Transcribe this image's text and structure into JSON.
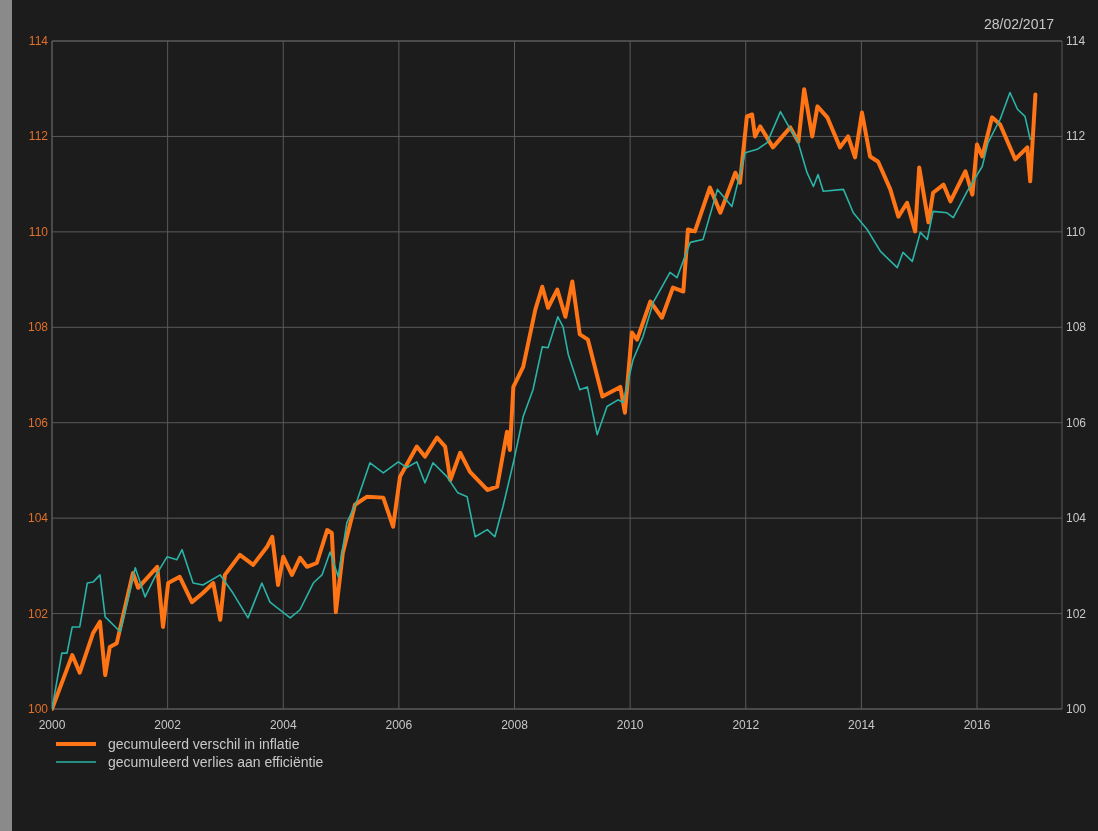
{
  "chart_data": {
    "type": "line",
    "annotations": [
      "28/02/2017"
    ],
    "xlim": [
      2000,
      2017.47
    ],
    "xticks": [
      2000,
      2002,
      2004,
      2006,
      2008,
      2010,
      2012,
      2014,
      2016
    ],
    "ylim": [
      100,
      114
    ],
    "yticks": [
      100,
      102,
      104,
      106,
      108,
      110,
      112,
      114
    ],
    "y2lim": [
      100,
      114
    ],
    "y2ticks": [
      100,
      102,
      104,
      106,
      108,
      110,
      112,
      114
    ],
    "grid": true,
    "legend": "bottom left",
    "marker": "none",
    "line_style": "solid",
    "series": [
      {
        "name": "gecumuleerd verschil in inflatie",
        "color": "#ff7415",
        "x": [
          2000,
          2000.35,
          2000.48,
          2000.71,
          2000.83,
          2000.92,
          2001.0,
          2001.12,
          2001.4,
          2001.49,
          2001.82,
          2001.92,
          2002.01,
          2002.21,
          2002.42,
          2002.61,
          2002.79,
          2002.91,
          2002.99,
          2003.25,
          2003.48,
          2003.72,
          2003.81,
          2003.91,
          2004.0,
          2004.15,
          2004.29,
          2004.41,
          2004.58,
          2004.76,
          2004.84,
          2004.91,
          2005.03,
          2005.24,
          2005.45,
          2005.73,
          2005.9,
          2006.02,
          2006.31,
          2006.45,
          2006.66,
          2006.8,
          2006.89,
          2007.06,
          2007.23,
          2007.53,
          2007.7,
          2007.87,
          2007.92,
          2007.98,
          2008.15,
          2008.36,
          2008.48,
          2008.58,
          2008.74,
          2008.88,
          2009.0,
          2009.13,
          2009.27,
          2009.52,
          2009.83,
          2009.91,
          2010.03,
          2010.12,
          2010.35,
          2010.55,
          2010.74,
          2010.92,
          2011.0,
          2011.12,
          2011.38,
          2011.56,
          2011.82,
          2011.9,
          2012.02,
          2012.11,
          2012.16,
          2012.25,
          2012.47,
          2012.77,
          2012.91,
          2013.01,
          2013.15,
          2013.24,
          2013.41,
          2013.63,
          2013.77,
          2013.89,
          2014.01,
          2014.15,
          2014.29,
          2014.5,
          2014.64,
          2014.79,
          2014.93,
          2015.0,
          2015.16,
          2015.24,
          2015.42,
          2015.54,
          2015.8,
          2015.92,
          2016.0,
          2016.09,
          2016.26,
          2016.4,
          2016.66,
          2016.87,
          2016.92,
          2017.01
        ],
        "values": [
          100,
          101.13,
          100.76,
          101.59,
          101.83,
          100.71,
          101.3,
          101.38,
          102.85,
          102.54,
          102.98,
          101.72,
          102.64,
          102.77,
          102.24,
          102.43,
          102.64,
          101.87,
          102.81,
          103.23,
          103.02,
          103.4,
          103.61,
          102.6,
          103.19,
          102.81,
          103.17,
          102.98,
          103.06,
          103.75,
          103.69,
          102.03,
          103.27,
          104.28,
          104.45,
          104.43,
          103.82,
          104.87,
          105.5,
          105.29,
          105.69,
          105.5,
          104.8,
          105.37,
          104.97,
          104.59,
          104.66,
          105.81,
          105.43,
          106.75,
          107.17,
          108.37,
          108.85,
          108.41,
          108.79,
          108.22,
          108.96,
          107.85,
          107.74,
          106.55,
          106.75,
          106.21,
          107.89,
          107.74,
          108.54,
          108.2,
          108.83,
          108.75,
          110.05,
          110.01,
          110.93,
          110.4,
          111.24,
          111.03,
          112.42,
          112.46,
          112,
          112.21,
          111.77,
          112.19,
          111.89,
          112.99,
          112,
          112.63,
          112.4,
          111.77,
          112,
          111.56,
          112.5,
          111.58,
          111.47,
          110.89,
          110.32,
          110.61,
          110.01,
          111.35,
          110.2,
          110.82,
          110.99,
          110.64,
          111.27,
          110.78,
          111.83,
          111.58,
          112.4,
          112.25,
          111.52,
          111.77,
          111.06,
          112.88
        ]
      },
      {
        "name": "gecumuleerd verlies aan efficiëntie",
        "color": "#2ab3a6",
        "x": [
          2000,
          2000.17,
          2000.26,
          2000.35,
          2000.48,
          2000.61,
          2000.71,
          2000.83,
          2000.92,
          2001.18,
          2001.44,
          2001.61,
          2001.78,
          2001.99,
          2002.16,
          2002.25,
          2002.44,
          2002.61,
          2002.91,
          2003.13,
          2003.39,
          2003.63,
          2003.77,
          2004.12,
          2004.29,
          2004.52,
          2004.67,
          2004.81,
          2004.95,
          2005.1,
          2005.28,
          2005.5,
          2005.73,
          2005.99,
          2006.14,
          2006.31,
          2006.45,
          2006.59,
          2006.83,
          2007.02,
          2007.18,
          2007.32,
          2007.53,
          2007.66,
          2007.8,
          2007.98,
          2008.15,
          2008.32,
          2008.48,
          2008.58,
          2008.75,
          2008.84,
          2008.93,
          2009.13,
          2009.26,
          2009.43,
          2009.6,
          2009.79,
          2009.88,
          2010.05,
          2010.22,
          2010.4,
          2010.69,
          2010.81,
          2011.04,
          2011.26,
          2011.51,
          2011.76,
          2011.99,
          2012.2,
          2012.37,
          2012.6,
          2012.77,
          2012.89,
          2013.06,
          2013.17,
          2013.25,
          2013.34,
          2013.69,
          2013.86,
          2014.1,
          2014.33,
          2014.62,
          2014.72,
          2014.88,
          2015.02,
          2015.14,
          2015.24,
          2015.48,
          2015.59,
          2015.83,
          2016.09,
          2016.19,
          2016.4,
          2016.57,
          2016.7,
          2016.83,
          2016.92
        ],
        "values": [
          100,
          101.17,
          101.17,
          101.72,
          101.72,
          102.64,
          102.66,
          102.81,
          101.93,
          101.62,
          102.96,
          102.35,
          102.77,
          103.19,
          103.13,
          103.34,
          102.64,
          102.6,
          102.81,
          102.43,
          101.91,
          102.64,
          102.24,
          101.91,
          102.08,
          102.64,
          102.81,
          103.29,
          102.77,
          103.9,
          104.38,
          105.16,
          104.95,
          105.18,
          105.06,
          105.18,
          104.74,
          105.16,
          104.87,
          104.53,
          104.45,
          103.61,
          103.76,
          103.61,
          104.24,
          105.16,
          106.13,
          106.69,
          107.59,
          107.57,
          108.22,
          108.01,
          107.43,
          106.69,
          106.75,
          105.75,
          106.34,
          106.48,
          106.42,
          107.32,
          107.8,
          108.52,
          109.15,
          109.04,
          109.78,
          109.84,
          110.89,
          110.53,
          111.66,
          111.73,
          111.87,
          112.52,
          112.15,
          111.94,
          111.24,
          110.95,
          111.2,
          110.85,
          110.89,
          110.4,
          110.05,
          109.59,
          109.25,
          109.57,
          109.38,
          109.99,
          109.84,
          110.43,
          110.4,
          110.3,
          110.85,
          111.37,
          111.87,
          112.36,
          112.92,
          112.57,
          112.42,
          111.94
        ]
      }
    ]
  }
}
